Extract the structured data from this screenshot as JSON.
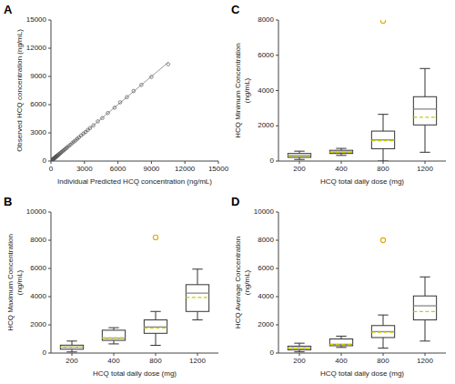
{
  "chart_data": [
    {
      "type": "scatter",
      "title": "A",
      "xlabel": "Individual Predicted HCQ concentration (ng/mL)",
      "ylabel": "Observed HCQ concentration (ng/mL)",
      "xlim": [
        0,
        15000
      ],
      "ylim": [
        0,
        15000
      ],
      "xticks": [
        0,
        3000,
        6000,
        9000,
        12000,
        15000
      ],
      "yticks": [
        0,
        3000,
        6000,
        9000,
        12000,
        15000
      ],
      "grid": false,
      "series": [
        {
          "type": "line",
          "x": [
            0,
            10500
          ],
          "values": [
            0,
            10500
          ],
          "color": "#999999",
          "line_style": "solid"
        },
        {
          "type": "scatter",
          "color": "#555555",
          "marker": "open-circle",
          "x": [
            10,
            15,
            20,
            25,
            30,
            35,
            40,
            45,
            50,
            55,
            60,
            65,
            70,
            75,
            80,
            85,
            90,
            95,
            100,
            110,
            120,
            130,
            140,
            150,
            160,
            170,
            180,
            190,
            200,
            220,
            240,
            260,
            280,
            300,
            320,
            340,
            360,
            380,
            400,
            430,
            460,
            500,
            540,
            580,
            630,
            680,
            730,
            800,
            880,
            950,
            1050,
            1150,
            1250,
            1350,
            1450,
            1600,
            1750,
            1900,
            2050,
            2200,
            2350,
            2500,
            2700,
            2900,
            3100,
            3300,
            3500,
            3800,
            4200,
            4600,
            5100,
            5700,
            6200,
            6800,
            7400,
            8100,
            9000,
            10500
          ],
          "values": [
            12,
            18,
            22,
            28,
            32,
            38,
            42,
            48,
            55,
            58,
            65,
            68,
            72,
            78,
            82,
            88,
            92,
            98,
            105,
            112,
            125,
            132,
            142,
            158,
            165,
            172,
            185,
            195,
            205,
            225,
            245,
            262,
            278,
            305,
            325,
            342,
            368,
            382,
            402,
            438,
            462,
            512,
            545,
            582,
            638,
            685,
            738,
            808,
            888,
            958,
            1055,
            1148,
            1255,
            1352,
            1450,
            1610,
            1740,
            1915,
            2060,
            2190,
            2365,
            2510,
            2720,
            2920,
            3090,
            3310,
            3510,
            3800,
            4220,
            4580,
            5110,
            5680,
            6250,
            6800,
            7450,
            8100,
            8950,
            10300
          ]
        }
      ]
    },
    {
      "type": "box",
      "title": "C",
      "xlabel": "HCQ total daily dose (mg)",
      "ylabel": "HCQ Minimum Concentration\n(ng/mL)",
      "categories": [
        200,
        400,
        800,
        1200
      ],
      "ylim": [
        0,
        8000
      ],
      "yticks": [
        0,
        2000,
        4000,
        6000,
        8000
      ],
      "grid": false,
      "color": "#ffffff",
      "median": {
        "values": [
          310,
          510,
          1200,
          2950
        ],
        "color": "#888888",
        "line_style": "solid"
      },
      "mean": {
        "values": [
          295,
          495,
          1150,
          2480
        ],
        "color": "#cccc00",
        "line_style": "dashed"
      },
      "q1": {
        "values": [
          210,
          430,
          700,
          2050
        ]
      },
      "q3": {
        "values": [
          430,
          610,
          1700,
          3650
        ]
      },
      "whislo": {
        "values": [
          90,
          320,
          0,
          500
        ],
        "color": "#333333"
      },
      "whishi": {
        "values": [
          560,
          720,
          2650,
          5250
        ],
        "color": "#333333"
      },
      "outliers": {
        "x": [
          800
        ],
        "values": [
          7950
        ],
        "color": "#ddaa00",
        "marker": "open-circle"
      }
    },
    {
      "type": "box",
      "title": "B",
      "xlabel": "HCQ total daily dose (mg)",
      "ylabel": "HCQ Maximum Concentration\n(ng/mL)",
      "categories": [
        200,
        400,
        800,
        1200
      ],
      "ylim": [
        0,
        10000
      ],
      "yticks": [
        0,
        2000,
        4000,
        6000,
        8000,
        10000
      ],
      "grid": false,
      "color": "#ffffff",
      "median": {
        "values": [
          420,
          1050,
          1850,
          4250
        ],
        "color": "#888888",
        "line_style": "solid"
      },
      "mean": {
        "values": [
          430,
          1080,
          1780,
          3950
        ],
        "color": "#cccc00",
        "line_style": "dashed"
      },
      "q1": {
        "values": [
          270,
          900,
          1400,
          2950
        ]
      },
      "q3": {
        "values": [
          560,
          1620,
          2350,
          4850
        ]
      },
      "whislo": {
        "values": [
          80,
          650,
          550,
          2350
        ],
        "color": "#333333"
      },
      "whishi": {
        "values": [
          850,
          1800,
          2950,
          5950
        ],
        "color": "#333333"
      },
      "outliers": {
        "x": [
          800
        ],
        "values": [
          8200
        ],
        "color": "#ddaa00",
        "marker": "open-circle"
      }
    },
    {
      "type": "box",
      "title": "D",
      "xlabel": "HCQ total daily dose (mg)",
      "ylabel": "HCQ Average Concentration\n(ng/mL)",
      "categories": [
        200,
        400,
        800,
        1200
      ],
      "ylim": [
        0,
        10000
      ],
      "yticks": [
        0,
        2000,
        4000,
        6000,
        8000,
        10000
      ],
      "grid": false,
      "color": "#ffffff",
      "median": {
        "values": [
          360,
          620,
          1520,
          3350
        ],
        "color": "#888888",
        "line_style": "solid"
      },
      "mean": {
        "values": [
          340,
          610,
          1480,
          2950
        ],
        "color": "#cccc00",
        "line_style": "dashed"
      },
      "q1": {
        "values": [
          230,
          520,
          1100,
          2350
        ]
      },
      "q3": {
        "values": [
          490,
          1000,
          1950,
          4050
        ]
      },
      "whislo": {
        "values": [
          90,
          400,
          350,
          850
        ],
        "color": "#333333"
      },
      "whishi": {
        "values": [
          700,
          1200,
          2700,
          5400
        ],
        "color": "#333333"
      },
      "outliers": {
        "x": [
          800
        ],
        "values": [
          8000
        ],
        "color": "#ddaa00",
        "marker": "open-circle"
      }
    }
  ]
}
